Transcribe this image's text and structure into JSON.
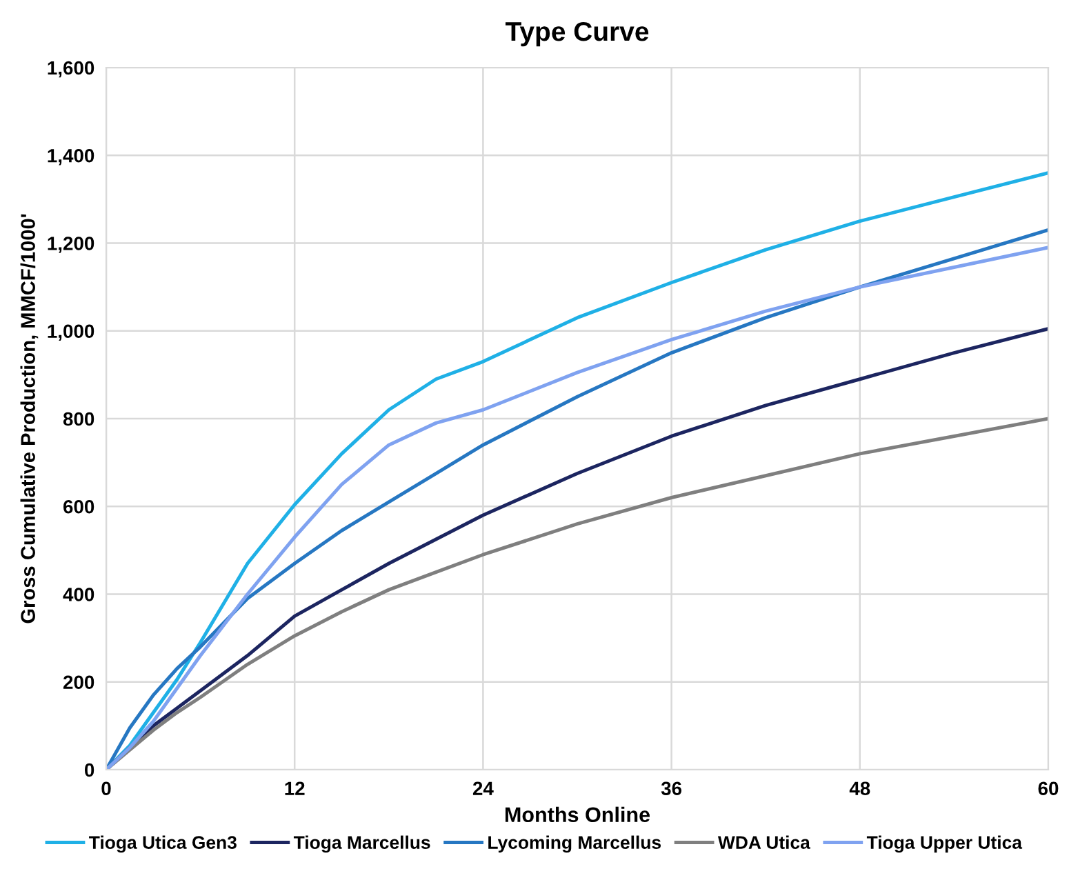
{
  "chart_data": {
    "type": "line",
    "title": "Type Curve",
    "xlabel": "Months Online",
    "ylabel": "Gross Cumulative Production, MMCF/1000'",
    "x": [
      0,
      1.5,
      3,
      4.5,
      6,
      9,
      12,
      15,
      18,
      21,
      24,
      30,
      36,
      42,
      48,
      54,
      60
    ],
    "series": [
      {
        "name": "Tioga Utica Gen3",
        "color": "#1fb0e6",
        "values": [
          0,
          55,
          130,
          205,
          290,
          470,
          604,
          720,
          820,
          890,
          930,
          1030,
          1110,
          1185,
          1250,
          1305,
          1360
        ]
      },
      {
        "name": "Tioga Marcellus",
        "color": "#1c2560",
        "values": [
          0,
          50,
          100,
          140,
          180,
          260,
          350,
          410,
          470,
          525,
          580,
          675,
          760,
          830,
          890,
          950,
          1005
        ]
      },
      {
        "name": "Lycoming Marcellus",
        "color": "#2677c2",
        "values": [
          0,
          95,
          170,
          230,
          280,
          390,
          470,
          545,
          610,
          675,
          740,
          850,
          950,
          1030,
          1100,
          1165,
          1230
        ]
      },
      {
        "name": "WDA Utica",
        "color": "#7f7f7f",
        "values": [
          0,
          45,
          90,
          130,
          165,
          240,
          305,
          360,
          410,
          450,
          490,
          560,
          620,
          670,
          720,
          760,
          800
        ]
      },
      {
        "name": "Tioga Upper Utica",
        "color": "#7fa2f0",
        "values": [
          0,
          50,
          110,
          185,
          260,
          400,
          530,
          650,
          740,
          790,
          820,
          905,
          980,
          1045,
          1100,
          1145,
          1190
        ]
      }
    ],
    "xlim": [
      0,
      60
    ],
    "xticks": [
      0,
      12,
      24,
      36,
      48,
      60
    ],
    "ylim": [
      0,
      1600
    ],
    "yticks": [
      {
        "value": 0,
        "label": "0"
      },
      {
        "value": 200,
        "label": "200"
      },
      {
        "value": 400,
        "label": "400"
      },
      {
        "value": 600,
        "label": "600"
      },
      {
        "value": 800,
        "label": "800"
      },
      {
        "value": 1000,
        "label": "1,000"
      },
      {
        "value": 1200,
        "label": "1,200"
      },
      {
        "value": 1400,
        "label": "1,400"
      },
      {
        "value": 1600,
        "label": "1,600"
      }
    ],
    "grid": true,
    "legend": "bottom",
    "marker": "none",
    "line_style": "solid"
  }
}
